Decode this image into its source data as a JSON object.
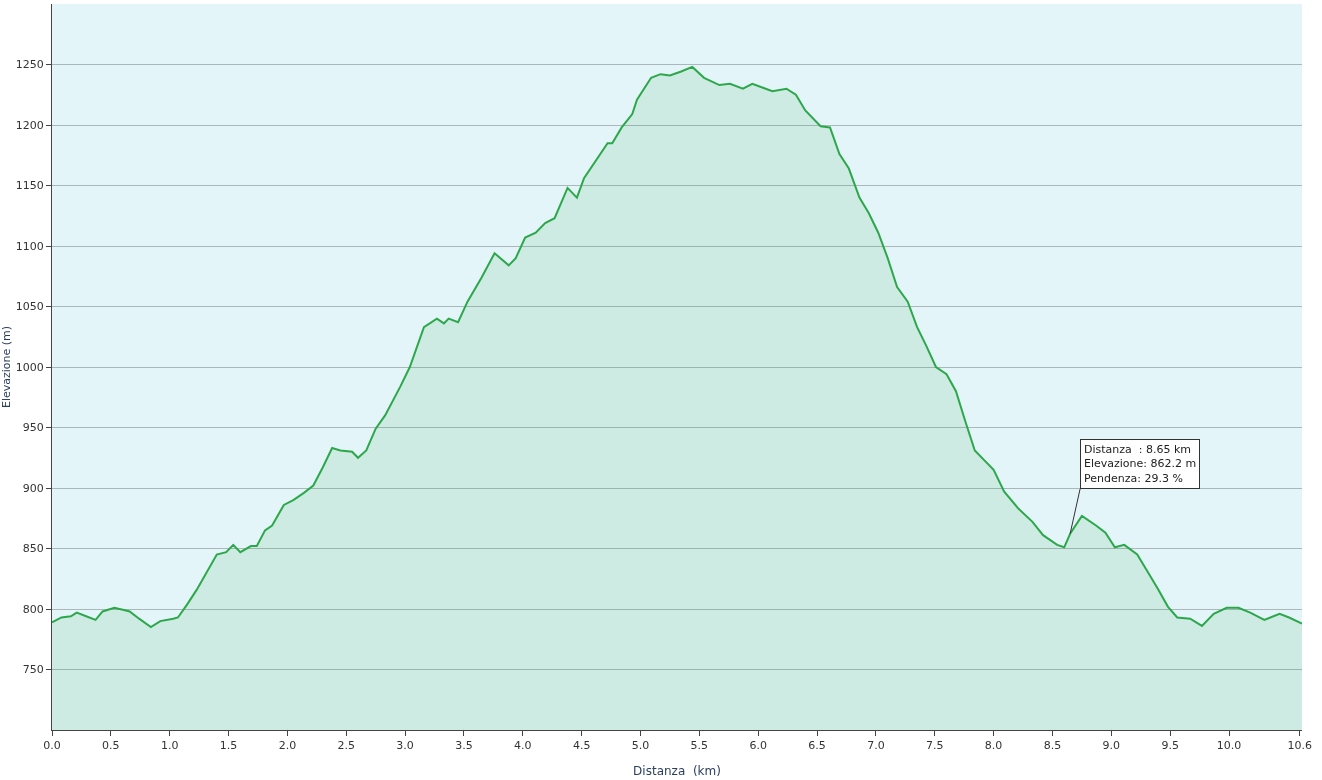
{
  "chart_data": {
    "type": "area",
    "xlabel": "Distanza  (km)",
    "ylabel": "Elevazione (m)",
    "x": [
      0,
      0.08,
      0.16,
      0.21,
      0.29,
      0.37,
      0.43,
      0.53,
      0.62,
      0.66,
      0.74,
      0.84,
      0.92,
      1.03,
      1.07,
      1.15,
      1.23,
      1.4,
      1.48,
      1.54,
      1.6,
      1.69,
      1.74,
      1.81,
      1.87,
      1.97,
      2.05,
      2.14,
      2.22,
      2.3,
      2.38,
      2.45,
      2.55,
      2.6,
      2.67,
      2.75,
      2.83,
      2.96,
      3.04,
      3.16,
      3.27,
      3.33,
      3.37,
      3.45,
      3.53,
      3.65,
      3.76,
      3.88,
      3.94,
      4.02,
      4.11,
      4.19,
      4.27,
      4.38,
      4.46,
      4.52,
      4.72,
      4.76,
      4.84,
      4.93,
      4.97,
      5.09,
      5.17,
      5.25,
      5.34,
      5.44,
      5.54,
      5.67,
      5.76,
      5.87,
      5.95,
      6.12,
      6.24,
      6.32,
      6.4,
      6.53,
      6.61,
      6.69,
      6.77,
      6.86,
      6.94,
      7.02,
      7.1,
      7.18,
      7.27,
      7.35,
      7.43,
      7.51,
      7.6,
      7.68,
      7.76,
      7.84,
      7.92,
      8.0,
      8.09,
      8.21,
      8.33,
      8.42,
      8.54,
      8.6,
      8.65,
      8.75,
      8.87,
      8.95,
      9.03,
      9.11,
      9.22,
      9.32,
      9.4,
      9.48,
      9.56,
      9.67,
      9.77,
      9.87,
      9.98,
      10.08,
      10.18,
      10.3,
      10.43,
      10.51,
      10.62
    ],
    "series": [
      {
        "color": "#2ca84a",
        "values": [
          789,
          793,
          794,
          797,
          794,
          791,
          798,
          801,
          799,
          798,
          792,
          785,
          790,
          792,
          793,
          804,
          816,
          845,
          847,
          853,
          847,
          852,
          852,
          865,
          869,
          886,
          890,
          896,
          902,
          917,
          933,
          931,
          930,
          925,
          931,
          949,
          960,
          984,
          1000,
          1033,
          1040,
          1036,
          1040,
          1037,
          1054,
          1074,
          1094,
          1084,
          1090,
          1107,
          1111,
          1119,
          1123,
          1148,
          1140,
          1156,
          1185,
          1185,
          1198,
          1209,
          1221,
          1239,
          1242,
          1241,
          1244,
          1248,
          1239,
          1233,
          1234,
          1230,
          1234,
          1228,
          1230,
          1225,
          1212,
          1199,
          1198,
          1176,
          1164,
          1140,
          1127,
          1111,
          1090,
          1066,
          1054,
          1033,
          1017,
          1000,
          994,
          980,
          955,
          931,
          923,
          915,
          897,
          883,
          872,
          861,
          853,
          851,
          862.2,
          877,
          869,
          863,
          851,
          853,
          845,
          829,
          816,
          802,
          793,
          792,
          786,
          796,
          801,
          801,
          797,
          791,
          796,
          793,
          788
        ]
      }
    ],
    "xlim": [
      0,
      10.62
    ],
    "xticks": [
      {
        "value": 0,
        "label": "0.0"
      },
      {
        "value": 0.5,
        "label": "0.5"
      },
      {
        "value": 1,
        "label": "1.0"
      },
      {
        "value": 1.5,
        "label": "1.5"
      },
      {
        "value": 2,
        "label": "2.0"
      },
      {
        "value": 2.5,
        "label": "2.5"
      },
      {
        "value": 3,
        "label": "3.0"
      },
      {
        "value": 3.5,
        "label": "3.5"
      },
      {
        "value": 4,
        "label": "4.0"
      },
      {
        "value": 4.5,
        "label": "4.5"
      },
      {
        "value": 5,
        "label": "5.0"
      },
      {
        "value": 5.5,
        "label": "5.5"
      },
      {
        "value": 6,
        "label": "6.0"
      },
      {
        "value": 6.5,
        "label": "6.5"
      },
      {
        "value": 7,
        "label": "7.0"
      },
      {
        "value": 7.5,
        "label": "7.5"
      },
      {
        "value": 8,
        "label": "8.0"
      },
      {
        "value": 8.5,
        "label": "8.5"
      },
      {
        "value": 9,
        "label": "9.0"
      },
      {
        "value": 9.5,
        "label": "9.5"
      },
      {
        "value": 10,
        "label": "10.0"
      },
      {
        "value": 10.6,
        "label": "10.6"
      }
    ],
    "ylim": [
      700,
      1300
    ],
    "yticks": [
      750,
      800,
      850,
      900,
      950,
      1000,
      1050,
      1100,
      1150,
      1200,
      1250
    ],
    "grid": "y",
    "legend": false,
    "marker": "none",
    "line_style": "solid",
    "annotations": [
      {
        "text": "Distanza  : 8.65 km\nElevazione: 862.2 m\nPendenza: 29.3 %",
        "x": 8.65,
        "y": 862.2
      }
    ]
  }
}
